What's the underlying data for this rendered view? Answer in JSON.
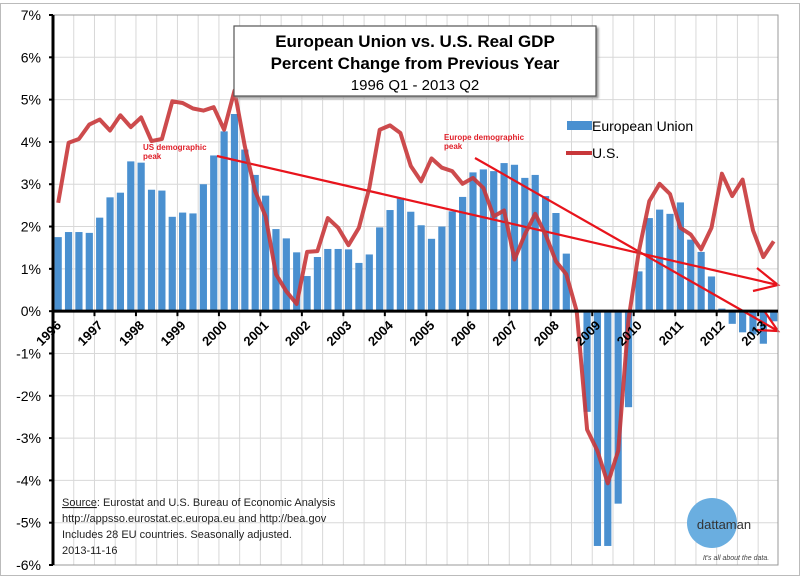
{
  "chart_data": {
    "type": "bar+line",
    "title": [
      "European Union vs. U.S. Real GDP",
      "Percent Change from Previous Year"
    ],
    "subtitle": "1996 Q1 - 2013 Q2",
    "ylim": [
      -6,
      7
    ],
    "y_ticks": [
      "-6%",
      "-5%",
      "-4%",
      "-3%",
      "-2%",
      "-1%",
      "0%",
      "1%",
      "2%",
      "3%",
      "4%",
      "5%",
      "6%",
      "7%"
    ],
    "x_tick_labels": [
      "1996",
      "1997",
      "1998",
      "1999",
      "2000",
      "2001",
      "2002",
      "2003",
      "2004",
      "2005",
      "2006",
      "2007",
      "2008",
      "2009",
      "2010",
      "2011",
      "2012",
      "2013"
    ],
    "grid": true,
    "legend_position": "right",
    "series": [
      {
        "name": "European Union",
        "kind": "bar",
        "color": "#4a90d0",
        "values": [
          1.75,
          1.87,
          1.87,
          1.85,
          2.21,
          2.69,
          2.8,
          3.54,
          3.51,
          2.87,
          2.85,
          2.23,
          2.33,
          2.31,
          3.0,
          3.68,
          4.25,
          4.66,
          3.82,
          3.22,
          2.73,
          1.94,
          1.72,
          1.39,
          0.83,
          1.28,
          1.47,
          1.47,
          1.46,
          1.14,
          1.34,
          1.98,
          2.39,
          2.68,
          2.35,
          2.03,
          1.71,
          2.0,
          2.36,
          2.7,
          3.28,
          3.35,
          3.31,
          3.5,
          3.46,
          3.15,
          3.22,
          2.72,
          2.32,
          1.36,
          0.02,
          -2.38,
          -5.55,
          -5.55,
          -4.55,
          -2.27,
          0.94,
          2.2,
          2.4,
          2.3,
          2.57,
          1.69,
          1.4,
          0.82,
          0.06,
          -0.3,
          -0.5,
          -0.55,
          -0.77,
          -0.24
        ]
      },
      {
        "name": "U.S.",
        "kind": "line",
        "color": "#c8373a",
        "values": [
          2.56,
          3.98,
          4.07,
          4.41,
          4.53,
          4.27,
          4.63,
          4.35,
          4.58,
          4.02,
          4.07,
          4.96,
          4.92,
          4.79,
          4.74,
          4.82,
          4.29,
          5.21,
          3.9,
          2.83,
          2.24,
          0.87,
          0.47,
          0.17,
          1.4,
          1.42,
          2.2,
          1.97,
          1.56,
          1.97,
          2.91,
          4.29,
          4.39,
          4.21,
          3.43,
          3.07,
          3.61,
          3.39,
          3.31,
          3.01,
          3.15,
          2.91,
          2.24,
          2.38,
          1.22,
          1.81,
          2.3,
          1.81,
          1.18,
          0.87,
          0.0,
          -2.8,
          -3.3,
          -4.07,
          -3.3,
          -0.2,
          1.42,
          2.6,
          3.01,
          2.77,
          1.97,
          1.81,
          1.46,
          1.97,
          3.25,
          2.72,
          3.11,
          1.91,
          1.28,
          1.65
        ]
      }
    ],
    "annotations": [
      {
        "text": [
          "US demographic",
          "peak"
        ],
        "color": "#e0202a"
      },
      {
        "text": [
          "Europe demographic",
          "peak"
        ],
        "color": "#e0202a"
      }
    ],
    "trend_arrows_color": "#e8141c"
  },
  "footer": {
    "source_label": "Source",
    "source_rest": ": Eurostat and U.S. Bureau of Economic Analysis",
    "line2": "http://appsso.eurostat.ec.europa.eu and http://bea.gov",
    "line3": "Includes 28 EU countries. Seasonally adjusted.",
    "line4": "2013-11-16"
  },
  "logo": {
    "name": "dattaman",
    "tagline": "It's all about the data.",
    "color": "#6aaee0"
  }
}
